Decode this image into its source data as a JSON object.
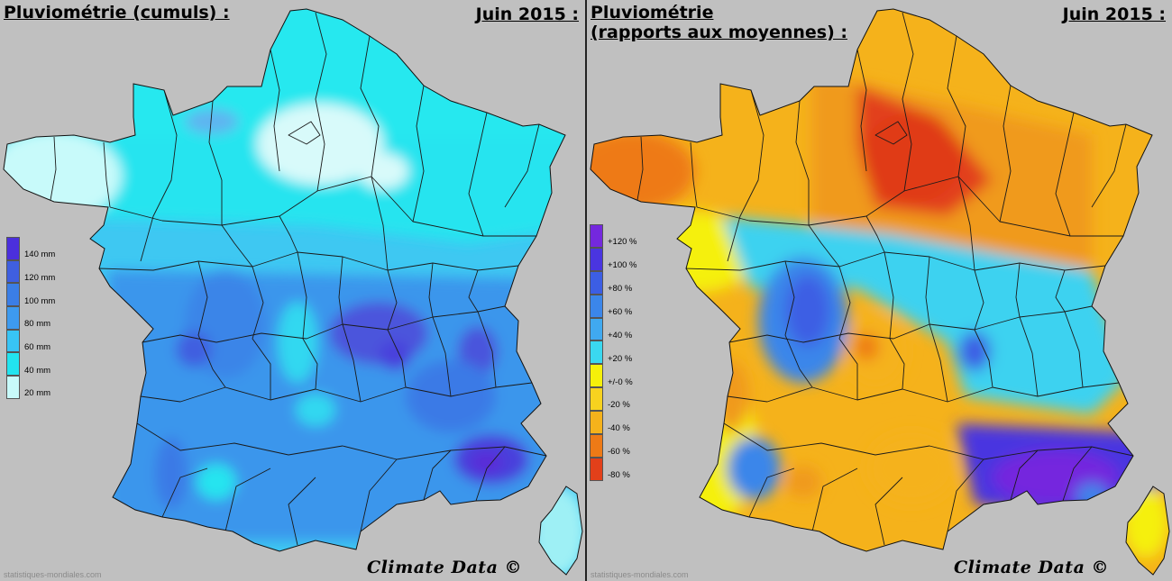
{
  "left": {
    "title": "Pluviométrie (cumuls) :",
    "date": "Juin 2015 :",
    "credit": "Climate Data ©",
    "source": "statistiques-mondiales.com",
    "legend": [
      {
        "label": "140 mm",
        "color": "#4b2fdc"
      },
      {
        "label": "120 mm",
        "color": "#3f5fe0"
      },
      {
        "label": "100 mm",
        "color": "#3b7ee6"
      },
      {
        "label": "80 mm",
        "color": "#3d9aef"
      },
      {
        "label": "60 mm",
        "color": "#38c4f5"
      },
      {
        "label": "40 mm",
        "color": "#22e4ef"
      },
      {
        "label": "20 mm",
        "color": "#c8fafa"
      }
    ]
  },
  "right": {
    "title_line1": "Pluviométrie",
    "title_line2": "(rapports aux moyennes) :",
    "date": "Juin 2015 :",
    "credit": "Climate Data ©",
    "source": "statistiques-mondiales.com",
    "legend": [
      {
        "label": "+120 %",
        "color": "#7428de"
      },
      {
        "label": "+100 %",
        "color": "#4a35e0"
      },
      {
        "label": "+80 %",
        "color": "#3c5ee4"
      },
      {
        "label": "+60 %",
        "color": "#3b86ea"
      },
      {
        "label": "+40 %",
        "color": "#40a9f0"
      },
      {
        "label": "+20 %",
        "color": "#3ad8f0"
      },
      {
        "label": "+/-0 %",
        "color": "#f5f00a"
      },
      {
        "label": "-20 %",
        "color": "#f7d21f"
      },
      {
        "label": "-40 %",
        "color": "#f5b21b"
      },
      {
        "label": "-60 %",
        "color": "#ee7a16"
      },
      {
        "label": "-80 %",
        "color": "#e2401a"
      }
    ]
  }
}
